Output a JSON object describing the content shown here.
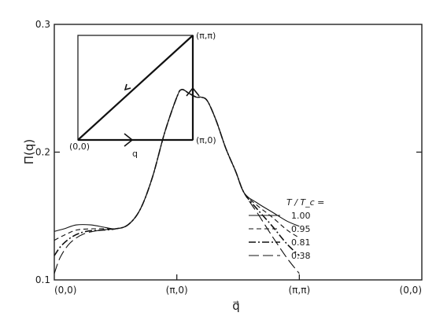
{
  "chart_data": {
    "type": "line",
    "title": "",
    "xlabel": "q⃗",
    "ylabel": "Π(q)",
    "ylim": [
      0.1,
      0.3
    ],
    "y_ticks": [
      "0.1",
      "0.2",
      "0.3"
    ],
    "x_path_points": [
      "(0,0)",
      "(π,0)",
      "(π,π)",
      "(0,0)"
    ],
    "x_segments": [
      "(0,0)→(π,0)",
      "(π,0)→(π,π)",
      "(π,π)→(0,0)"
    ],
    "grid": false,
    "legend": {
      "title": "T / T_c =",
      "placement": "right"
    },
    "series": [
      {
        "name": "1.00",
        "style": "solid",
        "points": [
          [
            0,
            0.138
          ],
          [
            0.08,
            0.14
          ],
          [
            0.18,
            0.143
          ],
          [
            0.3,
            0.143
          ],
          [
            0.42,
            0.141
          ],
          [
            0.5,
            0.14
          ],
          [
            0.6,
            0.143
          ],
          [
            0.7,
            0.155
          ],
          [
            0.8,
            0.18
          ],
          [
            0.9,
            0.215
          ],
          [
            1.0,
            0.243
          ],
          [
            1.04,
            0.249
          ],
          [
            1.1,
            0.246
          ],
          [
            1.16,
            0.243
          ],
          [
            1.2,
            0.243
          ],
          [
            1.25,
            0.24
          ],
          [
            1.32,
            0.225
          ],
          [
            1.4,
            0.203
          ],
          [
            1.48,
            0.185
          ],
          [
            1.55,
            0.168
          ],
          [
            1.66,
            0.16
          ],
          [
            1.78,
            0.153
          ],
          [
            1.9,
            0.146
          ],
          [
            2.0,
            0.142
          ]
        ]
      },
      {
        "name": "0.95",
        "style": "dashed",
        "points": [
          [
            0,
            0.131
          ],
          [
            0.08,
            0.135
          ],
          [
            0.18,
            0.139
          ],
          [
            0.3,
            0.14
          ],
          [
            0.42,
            0.14
          ],
          [
            0.5,
            0.14
          ],
          [
            0.6,
            0.143
          ],
          [
            0.7,
            0.155
          ],
          [
            0.8,
            0.18
          ],
          [
            0.9,
            0.215
          ],
          [
            1.0,
            0.243
          ],
          [
            1.04,
            0.249
          ],
          [
            1.1,
            0.246
          ],
          [
            1.16,
            0.243
          ],
          [
            1.2,
            0.243
          ],
          [
            1.25,
            0.24
          ],
          [
            1.32,
            0.225
          ],
          [
            1.4,
            0.203
          ],
          [
            1.48,
            0.185
          ],
          [
            1.55,
            0.168
          ],
          [
            1.66,
            0.158
          ],
          [
            1.78,
            0.149
          ],
          [
            1.9,
            0.139
          ],
          [
            2.0,
            0.133
          ]
        ]
      },
      {
        "name": "0.81",
        "style": "dashdot",
        "points": [
          [
            0,
            0.119
          ],
          [
            0.06,
            0.127
          ],
          [
            0.15,
            0.134
          ],
          [
            0.26,
            0.138
          ],
          [
            0.4,
            0.139
          ],
          [
            0.5,
            0.14
          ],
          [
            0.6,
            0.143
          ],
          [
            0.7,
            0.155
          ],
          [
            0.8,
            0.18
          ],
          [
            0.9,
            0.215
          ],
          [
            1.0,
            0.243
          ],
          [
            1.04,
            0.249
          ],
          [
            1.1,
            0.246
          ],
          [
            1.16,
            0.243
          ],
          [
            1.2,
            0.243
          ],
          [
            1.25,
            0.24
          ],
          [
            1.32,
            0.225
          ],
          [
            1.4,
            0.203
          ],
          [
            1.48,
            0.185
          ],
          [
            1.55,
            0.168
          ],
          [
            1.66,
            0.155
          ],
          [
            1.78,
            0.142
          ],
          [
            1.9,
            0.128
          ],
          [
            2.0,
            0.119
          ]
        ]
      },
      {
        "name": "0.38",
        "style": "longdash",
        "points": [
          [
            0,
            0.105
          ],
          [
            0.05,
            0.118
          ],
          [
            0.13,
            0.129
          ],
          [
            0.24,
            0.136
          ],
          [
            0.38,
            0.139
          ],
          [
            0.5,
            0.14
          ],
          [
            0.6,
            0.143
          ],
          [
            0.7,
            0.155
          ],
          [
            0.8,
            0.18
          ],
          [
            0.9,
            0.215
          ],
          [
            1.0,
            0.243
          ],
          [
            1.04,
            0.249
          ],
          [
            1.1,
            0.246
          ],
          [
            1.16,
            0.243
          ],
          [
            1.2,
            0.243
          ],
          [
            1.25,
            0.24
          ],
          [
            1.32,
            0.225
          ],
          [
            1.4,
            0.203
          ],
          [
            1.48,
            0.185
          ],
          [
            1.55,
            0.168
          ],
          [
            1.66,
            0.152
          ],
          [
            1.78,
            0.134
          ],
          [
            1.9,
            0.117
          ],
          [
            2.0,
            0.105
          ]
        ]
      }
    ],
    "inset": {
      "corner_labels": [
        "(0,0)",
        "(π,0)",
        "(π,π)"
      ],
      "path_label": "q"
    }
  }
}
